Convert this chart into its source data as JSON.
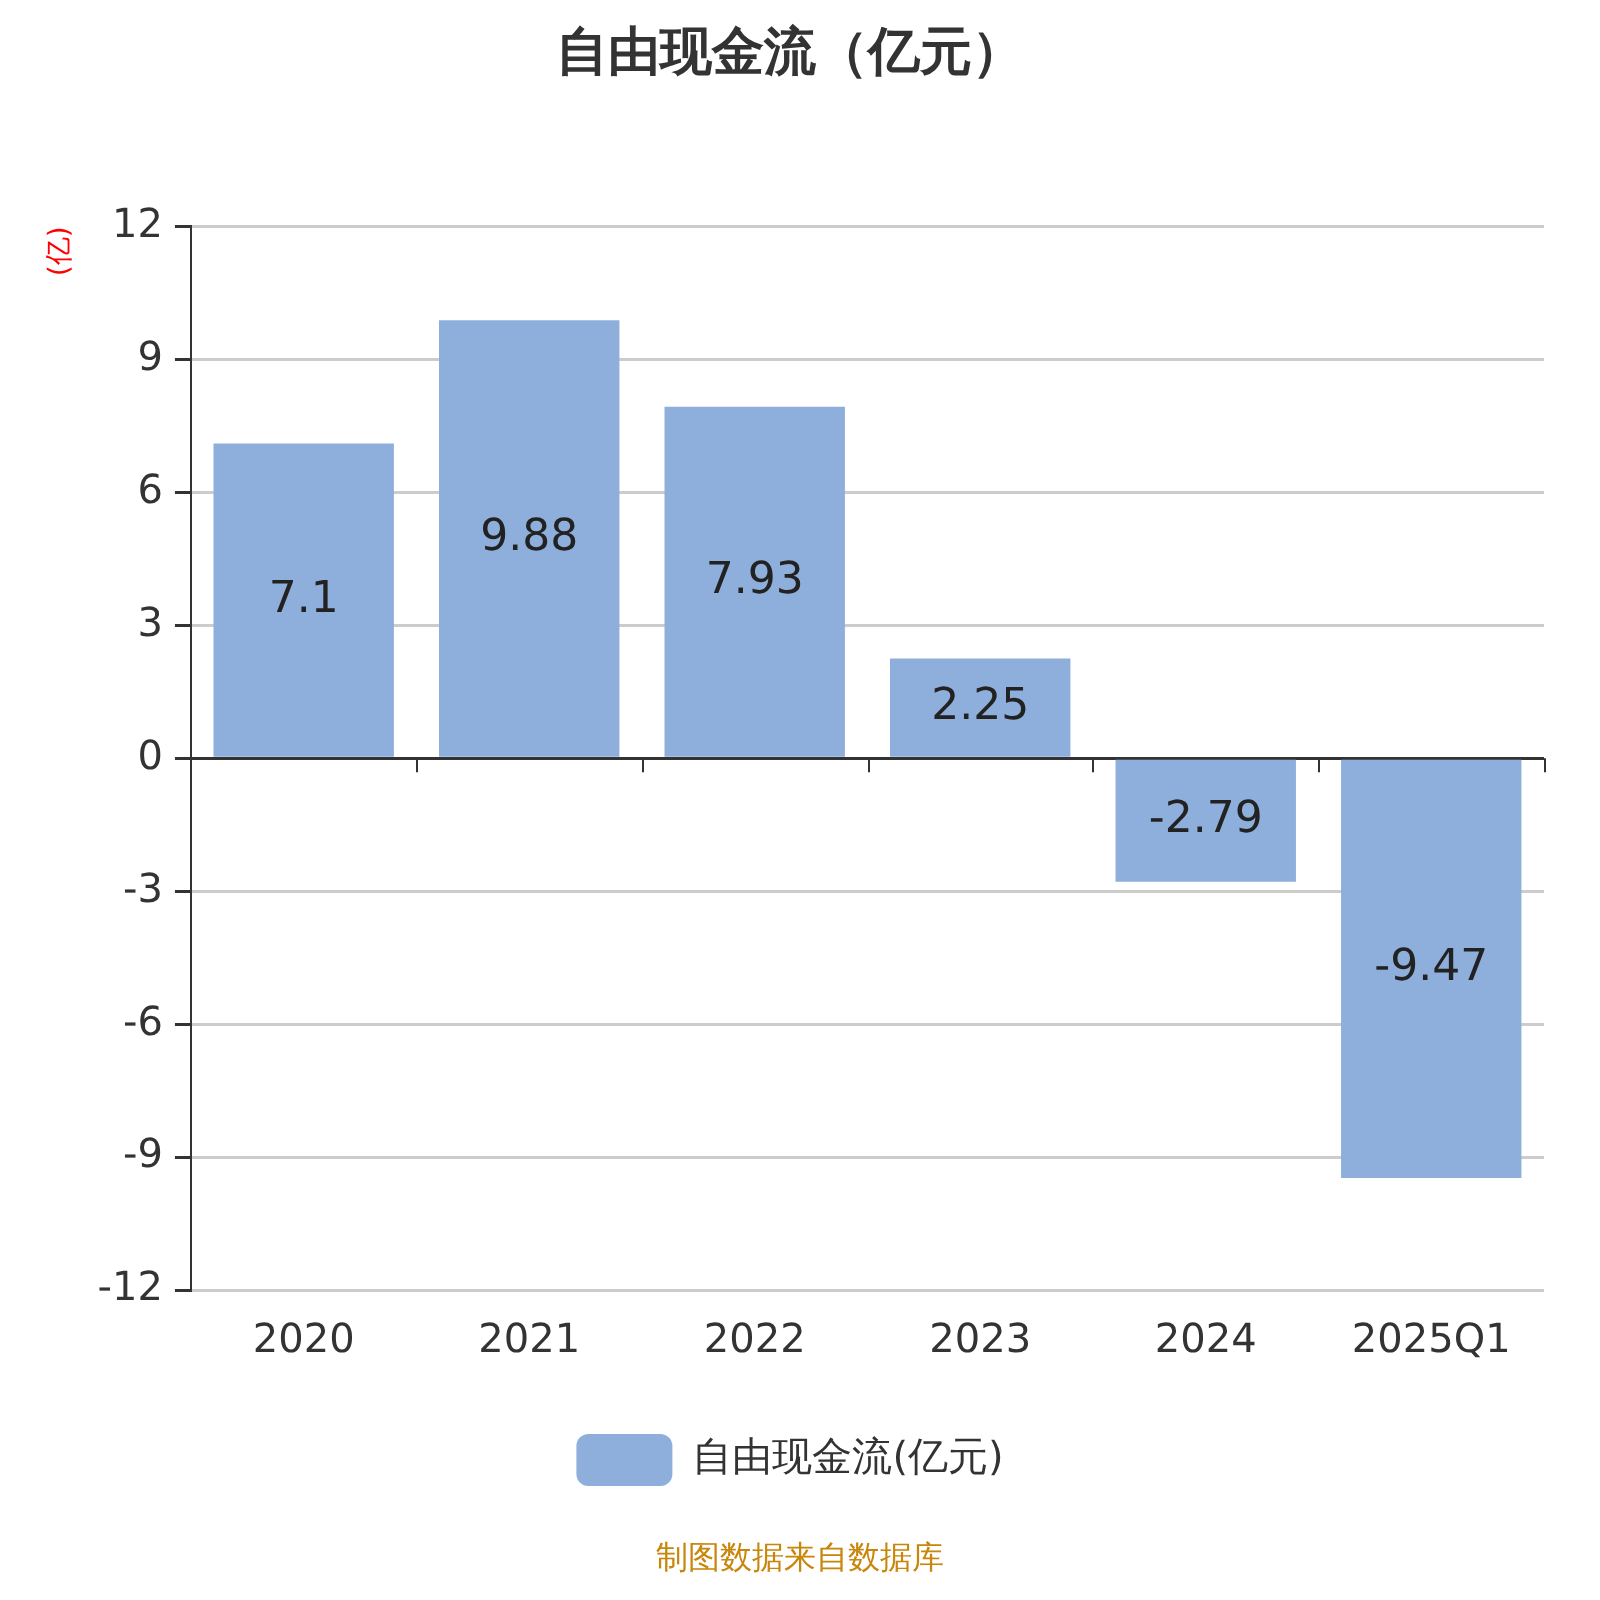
{
  "chart_data": {
    "type": "bar",
    "title": "自由现金流（亿元）",
    "ylabel": "(亿)",
    "categories": [
      "2020",
      "2021",
      "2022",
      "2023",
      "2024",
      "2025Q1"
    ],
    "series": [
      {
        "name": "自由现金流(亿元)",
        "color": "#8eaedb",
        "values": [
          7.1,
          9.88,
          7.93,
          2.25,
          -2.79,
          -9.47
        ]
      }
    ],
    "ylim": [
      -12,
      12
    ],
    "yticks": [
      -12,
      -9,
      -6,
      -3,
      0,
      3,
      6,
      9,
      12
    ],
    "grid": "y",
    "legend": "bottom",
    "data_labels": true,
    "annotations": [
      "制图数据来自数据库"
    ]
  }
}
